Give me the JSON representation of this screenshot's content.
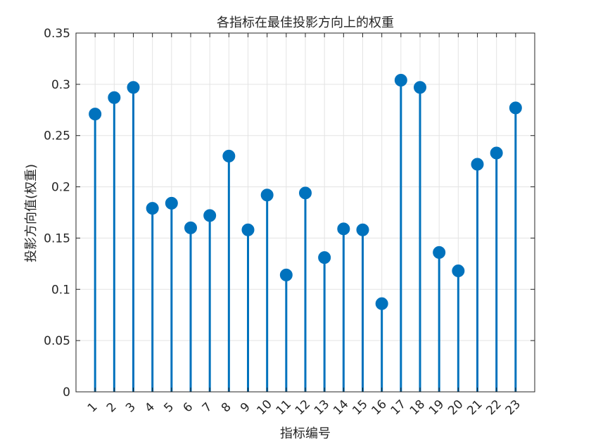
{
  "chart_data": {
    "type": "stem",
    "title": "各指标在最佳投影方向上的权重",
    "xlabel": "指标编号",
    "ylabel": "投影方向值(权重)",
    "xlim": [
      0,
      24
    ],
    "ylim": [
      0,
      0.35
    ],
    "grid": true,
    "legend": "none",
    "x": [
      1,
      2,
      3,
      4,
      5,
      6,
      7,
      8,
      9,
      10,
      11,
      12,
      13,
      14,
      15,
      16,
      17,
      18,
      19,
      20,
      21,
      22,
      23
    ],
    "x_tick_labels": [
      "1",
      "2",
      "3",
      "4",
      "5",
      "6",
      "7",
      "8",
      "9",
      "10",
      "11",
      "12",
      "13",
      "14",
      "15",
      "16",
      "17",
      "18",
      "19",
      "20",
      "21",
      "22",
      "23"
    ],
    "y_ticks": [
      0,
      0.05,
      0.1,
      0.15,
      0.2,
      0.25,
      0.3,
      0.35
    ],
    "y_tick_labels": [
      "0",
      "0.05",
      "0.1",
      "0.15",
      "0.2",
      "0.25",
      "0.3",
      "0.35"
    ],
    "values": [
      0.271,
      0.287,
      0.297,
      0.179,
      0.184,
      0.16,
      0.172,
      0.23,
      0.158,
      0.192,
      0.114,
      0.194,
      0.131,
      0.159,
      0.158,
      0.086,
      0.304,
      0.297,
      0.136,
      0.118,
      0.222,
      0.233,
      0.277
    ],
    "color": "#0072BD"
  }
}
